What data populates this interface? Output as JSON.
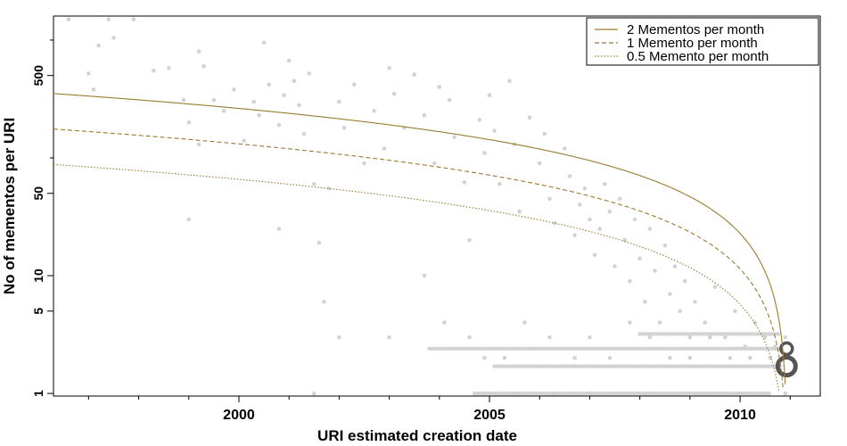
{
  "chart_data": {
    "type": "scatter",
    "title": "",
    "xlabel": "URI estimated creation date",
    "ylabel": "No of mementos per URI",
    "x_ticks": [
      2000,
      2005,
      2010
    ],
    "y_ticks": [
      1,
      5,
      10,
      50,
      500
    ],
    "y_scale": "log",
    "xlim": [
      1996.3,
      2011.6
    ],
    "ylim": [
      0.95,
      1600
    ],
    "grid": false,
    "legend_position": "top-right",
    "series": [
      {
        "name": "2 Mementos per month",
        "style": "solid",
        "rate_per_month": 2
      },
      {
        "name": "1 Memento per month",
        "style": "dashed",
        "rate_per_month": 1
      },
      {
        "name": "0.5 Memento per month",
        "style": "dotted",
        "rate_per_month": 0.5
      }
    ],
    "curve_end_year": 2010.95,
    "points": [
      [
        1996.6,
        1500
      ],
      [
        1997.0,
        520
      ],
      [
        1997.1,
        380
      ],
      [
        1997.2,
        900
      ],
      [
        1997.4,
        1500
      ],
      [
        1997.5,
        1050
      ],
      [
        1997.9,
        1500
      ],
      [
        1998.3,
        550
      ],
      [
        1998.6,
        580
      ],
      [
        1998.9,
        310
      ],
      [
        1999.0,
        200
      ],
      [
        1999.2,
        130
      ],
      [
        1999.2,
        800
      ],
      [
        1999.3,
        600
      ],
      [
        1999.5,
        310
      ],
      [
        1999.7,
        250
      ],
      [
        1999.9,
        380
      ],
      [
        2000.1,
        140
      ],
      [
        2000.3,
        300
      ],
      [
        2000.4,
        230
      ],
      [
        2000.5,
        950
      ],
      [
        2000.6,
        420
      ],
      [
        2000.8,
        190
      ],
      [
        2000.9,
        340
      ],
      [
        2001.0,
        670
      ],
      [
        2001.1,
        450
      ],
      [
        2001.2,
        280
      ],
      [
        2001.3,
        160
      ],
      [
        2001.4,
        520
      ],
      [
        2001.5,
        60
      ],
      [
        2001.6,
        19
      ],
      [
        2001.8,
        55
      ],
      [
        2002.0,
        300
      ],
      [
        2002.1,
        180
      ],
      [
        2002.3,
        420
      ],
      [
        2002.5,
        90
      ],
      [
        2002.7,
        250
      ],
      [
        2002.9,
        120
      ],
      [
        2003.0,
        580
      ],
      [
        2003.1,
        350
      ],
      [
        2003.3,
        180
      ],
      [
        2003.5,
        510
      ],
      [
        2003.7,
        230
      ],
      [
        2003.9,
        90
      ],
      [
        2004.0,
        400
      ],
      [
        2004.2,
        310
      ],
      [
        2004.3,
        150
      ],
      [
        2004.5,
        62
      ],
      [
        2004.6,
        20
      ],
      [
        2004.8,
        210
      ],
      [
        2004.9,
        110
      ],
      [
        2005.0,
        340
      ],
      [
        2005.1,
        170
      ],
      [
        2005.2,
        60
      ],
      [
        2005.4,
        450
      ],
      [
        2005.5,
        130
      ],
      [
        2005.6,
        35
      ],
      [
        2005.8,
        220
      ],
      [
        2006.0,
        90
      ],
      [
        2006.1,
        160
      ],
      [
        2006.2,
        45
      ],
      [
        2006.3,
        28
      ],
      [
        2006.5,
        120
      ],
      [
        2006.6,
        70
      ],
      [
        2006.7,
        22
      ],
      [
        2006.8,
        40
      ],
      [
        2006.9,
        55
      ],
      [
        2007.0,
        30
      ],
      [
        2007.1,
        15
      ],
      [
        2007.2,
        25
      ],
      [
        2007.3,
        60
      ],
      [
        2007.4,
        35
      ],
      [
        2007.5,
        12
      ],
      [
        2007.6,
        45
      ],
      [
        2007.7,
        20
      ],
      [
        2007.8,
        9
      ],
      [
        2007.9,
        30
      ],
      [
        2008.0,
        14
      ],
      [
        2008.1,
        6
      ],
      [
        2008.2,
        25
      ],
      [
        2008.3,
        11
      ],
      [
        2008.4,
        4
      ],
      [
        2008.5,
        18
      ],
      [
        2008.6,
        7
      ],
      [
        2008.7,
        12
      ],
      [
        2008.8,
        5
      ],
      [
        2008.9,
        9
      ],
      [
        2009.0,
        3
      ],
      [
        2009.1,
        6
      ],
      [
        2009.3,
        4
      ],
      [
        2009.5,
        8
      ],
      [
        2009.7,
        3
      ],
      [
        2009.9,
        5
      ],
      [
        2010.1,
        2.5
      ],
      [
        2010.3,
        4
      ],
      [
        2010.5,
        3
      ],
      [
        2010.7,
        2.5
      ],
      [
        2010.9,
        3
      ],
      [
        1999.0,
        30
      ],
      [
        2000.8,
        25
      ],
      [
        2001.7,
        6
      ],
      [
        2002.0,
        3
      ],
      [
        2003.0,
        3
      ],
      [
        2003.7,
        10
      ],
      [
        2004.1,
        4
      ],
      [
        2004.6,
        3
      ],
      [
        2004.9,
        2
      ],
      [
        2005.3,
        2
      ],
      [
        2005.7,
        4
      ],
      [
        2006.2,
        3
      ],
      [
        2006.7,
        2
      ],
      [
        2007.0,
        3
      ],
      [
        2007.4,
        2
      ],
      [
        2007.8,
        4
      ],
      [
        2008.2,
        3
      ],
      [
        2008.6,
        2
      ],
      [
        2009.0,
        2
      ],
      [
        2009.4,
        3
      ],
      [
        2009.8,
        2
      ],
      [
        2010.2,
        2
      ],
      [
        2010.6,
        2
      ],
      [
        2001.5,
        1
      ],
      [
        2004.9,
        1
      ],
      [
        2005.5,
        1
      ],
      [
        2006.3,
        1
      ],
      [
        2007.0,
        1
      ],
      [
        2007.6,
        1
      ],
      [
        2008.3,
        1
      ],
      [
        2008.9,
        1
      ],
      [
        2009.5,
        1
      ],
      [
        2010.0,
        1
      ],
      [
        2010.4,
        1
      ],
      [
        2010.9,
        1
      ]
    ],
    "point_bands": [
      {
        "y": 3.2,
        "from": 2008.0,
        "to": 2010.8
      },
      {
        "y": 2.4,
        "from": 2003.8,
        "to": 2010.8
      },
      {
        "y": 1.7,
        "from": 2005.1,
        "to": 2010.8
      },
      {
        "y": 1.0,
        "from": 2004.7,
        "to": 2010.6
      }
    ],
    "clusters": [
      {
        "x": 2010.93,
        "y": 1.7,
        "size": "large"
      },
      {
        "x": 2010.93,
        "y": 2.4,
        "size": "medium"
      }
    ]
  }
}
